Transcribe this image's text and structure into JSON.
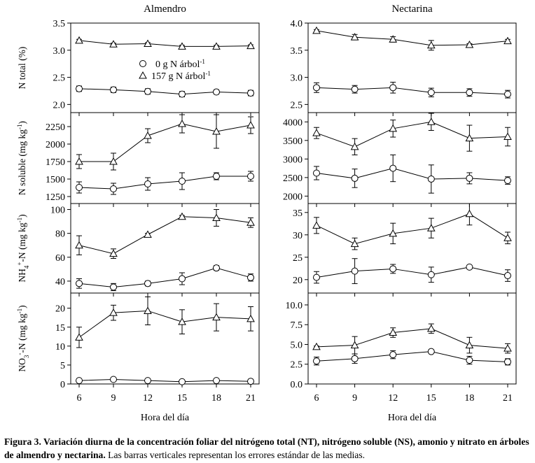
{
  "figure": {
    "columns": [
      "Almendro",
      "Nectarina"
    ],
    "x_label": "Hora del día",
    "x_ticks": [
      6,
      9,
      12,
      15,
      18,
      21
    ],
    "legend": {
      "series": [
        {
          "symbol": "circle",
          "label_text": "0 g  N árbol",
          "label_sup": "-1"
        },
        {
          "symbol": "triangle",
          "label_text": "157 g  N árbol",
          "label_sup": "-1"
        }
      ]
    }
  },
  "caption": {
    "label": "Figura 3. Variación diurna de la concentración foliar del nitrógeno total (NT), nitrógeno soluble (NS), amonio y nitrato en árboles de almendro y nectarina.",
    "description": " Las barras verticales representan los errores estándar de las medias."
  },
  "chart_data": [
    {
      "type": "line",
      "title": "Almendro",
      "row": "N total",
      "ylabel": "N total (%)",
      "ylim": [
        1.85,
        3.5
      ],
      "yticks": [
        2.0,
        2.5,
        3.0,
        3.5
      ],
      "ytick_labels": [
        "2.0",
        "2.5",
        "3.0",
        "3.5"
      ],
      "x": [
        6,
        9,
        12,
        15,
        18,
        21
      ],
      "series": [
        {
          "name": "0 g N árbol-1",
          "marker": "circle",
          "values": [
            2.29,
            2.27,
            2.24,
            2.19,
            2.23,
            2.21
          ],
          "errors": [
            0.05,
            0.05,
            0.05,
            0.05,
            0.04,
            0.05
          ]
        },
        {
          "name": "157 g N árbol-1",
          "marker": "triangle",
          "values": [
            3.18,
            3.11,
            3.12,
            3.07,
            3.07,
            3.08
          ],
          "errors": [
            0.02,
            0.02,
            0.02,
            0.02,
            0.02,
            0.02
          ]
        }
      ]
    },
    {
      "type": "line",
      "title": "Nectarina",
      "row": "N total",
      "ylabel": "",
      "ylim": [
        2.35,
        4.0
      ],
      "yticks": [
        2.5,
        3.0,
        3.5,
        4.0
      ],
      "ytick_labels": [
        "2.5",
        "3.0",
        "3.5",
        "4.0"
      ],
      "x": [
        6,
        9,
        12,
        15,
        18,
        21
      ],
      "series": [
        {
          "name": "0 g N árbol-1",
          "marker": "circle",
          "values": [
            2.81,
            2.78,
            2.81,
            2.72,
            2.72,
            2.69
          ],
          "errors": [
            0.09,
            0.07,
            0.1,
            0.08,
            0.07,
            0.07
          ]
        },
        {
          "name": "157 g N árbol-1",
          "marker": "triangle",
          "values": [
            3.86,
            3.74,
            3.7,
            3.59,
            3.6,
            3.67
          ],
          "errors": [
            0.02,
            0.05,
            0.05,
            0.09,
            0.02,
            0.03
          ]
        }
      ]
    },
    {
      "type": "line",
      "title": "Almendro",
      "row": "N soluble",
      "ylabel": "N soluble (mg kg-1)",
      "ylim": [
        1150,
        2450
      ],
      "yticks": [
        1250,
        1500,
        1750,
        2000,
        2250
      ],
      "ytick_labels": [
        "1250",
        "1500",
        "1750",
        "2000",
        "2250"
      ],
      "x": [
        6,
        9,
        12,
        15,
        18,
        21
      ],
      "series": [
        {
          "name": "0 g N árbol-1",
          "marker": "circle",
          "values": [
            1380,
            1360,
            1430,
            1470,
            1540,
            1540
          ],
          "errors": [
            80,
            80,
            90,
            120,
            50,
            70
          ]
        },
        {
          "name": "157 g N árbol-1",
          "marker": "triangle",
          "values": [
            1750,
            1750,
            2120,
            2290,
            2180,
            2270
          ],
          "errors": [
            100,
            120,
            100,
            130,
            240,
            120
          ]
        }
      ]
    },
    {
      "type": "line",
      "title": "Nectarina",
      "row": "N soluble",
      "ylabel": "",
      "ylim": [
        1800,
        4250
      ],
      "yticks": [
        2000,
        2500,
        3000,
        3500,
        4000
      ],
      "ytick_labels": [
        "2000",
        "2500",
        "3000",
        "3500",
        "4000"
      ],
      "x": [
        6,
        9,
        12,
        15,
        18,
        21
      ],
      "series": [
        {
          "name": "0 g N árbol-1",
          "marker": "circle",
          "values": [
            2620,
            2480,
            2750,
            2460,
            2480,
            2420
          ],
          "errors": [
            180,
            250,
            360,
            380,
            150,
            100
          ]
        },
        {
          "name": "157 g N árbol-1",
          "marker": "triangle",
          "values": [
            3700,
            3330,
            3820,
            4000,
            3560,
            3600
          ],
          "errors": [
            150,
            220,
            230,
            230,
            350,
            250
          ]
        }
      ]
    },
    {
      "type": "line",
      "title": "Almendro",
      "row": "NH4+-N",
      "ylabel": "NH4+-N (mg kg-1)",
      "ylim": [
        30,
        105
      ],
      "yticks": [
        40,
        60,
        80,
        100
      ],
      "ytick_labels": [
        "40",
        "60",
        "80",
        "100"
      ],
      "x": [
        6,
        9,
        12,
        15,
        18,
        21
      ],
      "series": [
        {
          "name": "0 g N árbol-1",
          "marker": "circle",
          "values": [
            38,
            35,
            38,
            42,
            51,
            43
          ],
          "errors": [
            4,
            3,
            2,
            5,
            2,
            3
          ]
        },
        {
          "name": "157 g N árbol-1",
          "marker": "triangle",
          "values": [
            70,
            63,
            79,
            94,
            93,
            89
          ],
          "errors": [
            8,
            4,
            1,
            1,
            7,
            4
          ]
        }
      ]
    },
    {
      "type": "line",
      "title": "Nectarina",
      "row": "NH4+-N",
      "ylabel": "",
      "ylim": [
        17,
        37
      ],
      "yticks": [
        20,
        25,
        30,
        35
      ],
      "ytick_labels": [
        "20",
        "25",
        "30",
        "35"
      ],
      "x": [
        6,
        9,
        12,
        15,
        18,
        21
      ],
      "series": [
        {
          "name": "0 g N árbol-1",
          "marker": "circle",
          "values": [
            20.5,
            21.9,
            22.4,
            21.1,
            22.8,
            20.9
          ],
          "errors": [
            1.3,
            2.8,
            1.0,
            1.7,
            0.3,
            1.3
          ]
        },
        {
          "name": "157 g N árbol-1",
          "marker": "triangle",
          "values": [
            32.1,
            28,
            30.3,
            31.5,
            34.7,
            29.3
          ],
          "errors": [
            1.8,
            1.3,
            2.3,
            2.2,
            2.5,
            1.3
          ]
        }
      ]
    },
    {
      "type": "line",
      "title": "Almendro",
      "row": "NO3--N",
      "ylabel": "NO3--N (mg kg-1)",
      "ylim": [
        0,
        24
      ],
      "yticks": [
        0,
        5,
        10,
        15,
        20
      ],
      "ytick_labels": [
        "0",
        "5",
        "10",
        "15",
        "20"
      ],
      "x": [
        6,
        9,
        12,
        15,
        18,
        21
      ],
      "series": [
        {
          "name": "0 g N árbol-1",
          "marker": "circle",
          "values": [
            0.9,
            1.2,
            0.9,
            0.6,
            0.9,
            0.7
          ],
          "errors": [
            0.2,
            0.2,
            0.2,
            0.1,
            0.2,
            0.1
          ]
        },
        {
          "name": "157 g N árbol-1",
          "marker": "triangle",
          "values": [
            12.3,
            18.8,
            19.3,
            16.4,
            17.6,
            17.2
          ],
          "errors": [
            2.7,
            2.0,
            3.7,
            3.2,
            3.6,
            3.2
          ]
        }
      ]
    },
    {
      "type": "line",
      "title": "Nectarina",
      "row": "NO3--N",
      "ylabel": "",
      "ylim": [
        0,
        11.5
      ],
      "yticks": [
        0,
        2.5,
        5.0,
        7.5,
        10.0
      ],
      "ytick_labels": [
        "0.0",
        "2.5",
        "5.0",
        "7.5",
        "10.0"
      ],
      "x": [
        6,
        9,
        12,
        15,
        18,
        21
      ],
      "series": [
        {
          "name": "0 g N árbol-1",
          "marker": "circle",
          "values": [
            2.9,
            3.2,
            3.7,
            4.1,
            3.0,
            2.8
          ],
          "errors": [
            0.5,
            0.6,
            0.5,
            0.2,
            0.5,
            0.4
          ]
        },
        {
          "name": "157 g N árbol-1",
          "marker": "triangle",
          "values": [
            4.7,
            4.9,
            6.5,
            7.0,
            4.9,
            4.5
          ],
          "errors": [
            0.1,
            1.1,
            0.6,
            0.6,
            1.0,
            0.6
          ]
        }
      ]
    }
  ]
}
